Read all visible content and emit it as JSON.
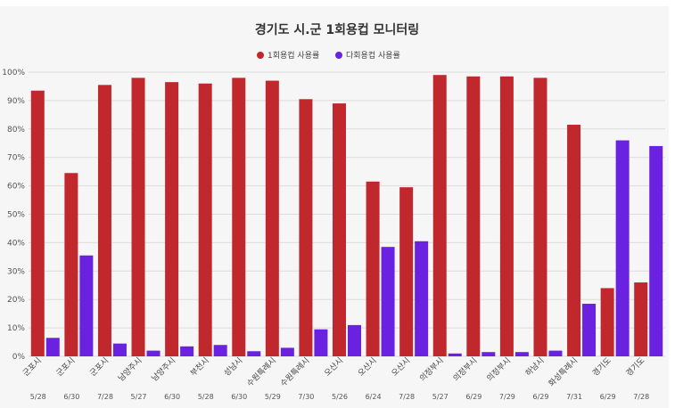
{
  "chart_data": {
    "type": "bar",
    "title": "경기도 시.군 1회용컵 모니터링",
    "xlabel": "",
    "ylabel": "",
    "ylim": [
      0,
      100
    ],
    "yticks": [
      "0%",
      "10%",
      "20%",
      "30%",
      "40%",
      "50%",
      "60%",
      "70%",
      "80%",
      "90%",
      "100%"
    ],
    "grid": true,
    "legend_position": "top",
    "categories": [
      "군포시",
      "군포시",
      "군포시",
      "남양주시",
      "남양주시",
      "부천시",
      "성남시",
      "수원특례시",
      "수원특례시",
      "오산시",
      "오산시",
      "오산시",
      "의정부시",
      "의정부시",
      "의정부시",
      "하남시",
      "화성특례시",
      "경기도",
      "경기도"
    ],
    "dates": [
      "5/28",
      "6/30",
      "7/28",
      "5/27",
      "6/30",
      "5/28",
      "6/30",
      "5/29",
      "7/30",
      "5/26",
      "6/24",
      "7/28",
      "5/27",
      "6/29",
      "7/29",
      "6/29",
      "7/31",
      "6/29",
      "7/28"
    ],
    "series": [
      {
        "name": "1회용컵 사용률",
        "color": "#c0282d",
        "values": [
          93.5,
          64.5,
          95.5,
          98,
          96.5,
          96,
          98,
          97,
          90.5,
          89,
          61.5,
          59.5,
          99,
          98.5,
          98.5,
          98,
          81.5,
          24,
          26
        ]
      },
      {
        "name": "다회용컵 사용률",
        "color": "#6a22e0",
        "values": [
          6.5,
          35.5,
          4.5,
          2,
          3.5,
          4,
          1.8,
          3,
          9.5,
          11,
          38.5,
          40.5,
          1,
          1.5,
          1.5,
          2,
          18.5,
          76,
          74
        ]
      }
    ]
  }
}
